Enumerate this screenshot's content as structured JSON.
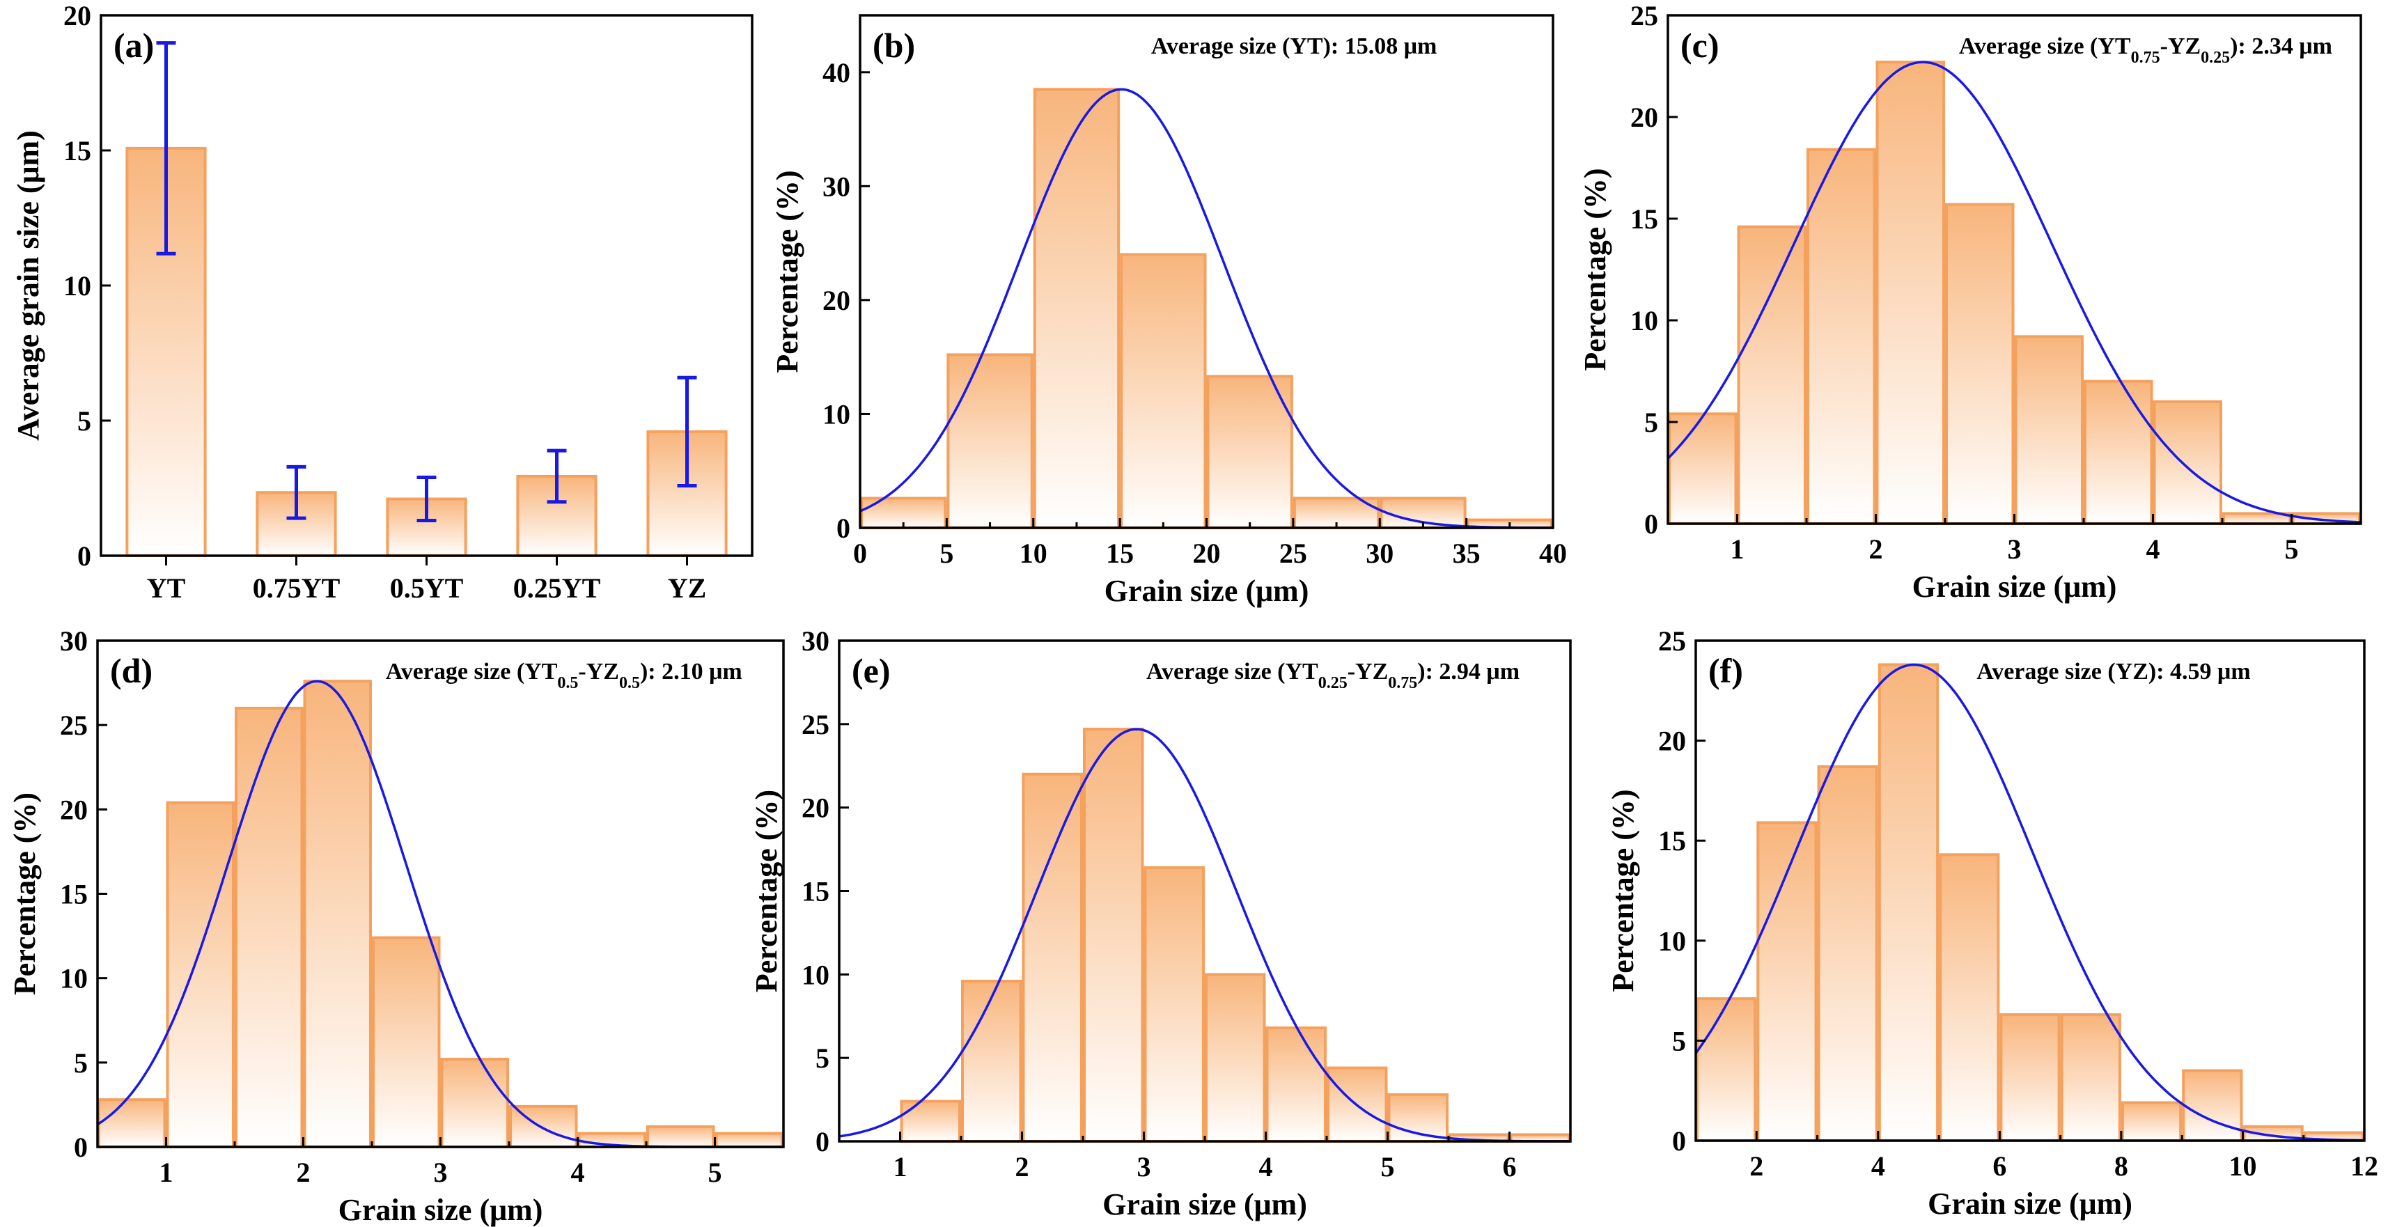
{
  "colors": {
    "bar_edge": "#F5A15E",
    "bar_fill_top": "#F8B57C",
    "bar_fill_bottom": "#FFFFFF",
    "fit_curve": "#1919E6",
    "error_bar": "#1919E6"
  },
  "chart_data": [
    {
      "id": "a",
      "type": "bar",
      "panel_label": "(a)",
      "title": "",
      "ylabel": "Average grain size (μm)",
      "xlabel": "",
      "ylim": [
        0,
        20
      ],
      "yticks": [
        0,
        5,
        10,
        15,
        20
      ],
      "categories": [
        "YT",
        "0.75YT",
        "0.5YT",
        "0.25YT",
        "YZ"
      ],
      "values": [
        15.08,
        2.34,
        2.1,
        2.94,
        4.59
      ],
      "errors": [
        3.9,
        0.95,
        0.8,
        0.95,
        2.0
      ],
      "annotation": ""
    },
    {
      "id": "b",
      "type": "histogram",
      "panel_label": "(b)",
      "annotation": "Average size (YT): 15.08 μm",
      "xlabel": "Grain size (μm)",
      "ylabel": "Percentage (%)",
      "xlim": [
        0,
        40
      ],
      "ylim": [
        0,
        45
      ],
      "xticks": [
        0,
        5,
        10,
        15,
        20,
        25,
        30,
        35,
        40
      ],
      "yticks": [
        0,
        10,
        20,
        30,
        40
      ],
      "bin_edges": [
        0,
        5,
        10,
        15,
        20,
        25,
        30,
        35,
        40
      ],
      "values": [
        2.6,
        15.2,
        38.5,
        24.0,
        13.3,
        2.6,
        2.6,
        0.7
      ],
      "fit": {
        "mean": 15.08,
        "sd": 5.9,
        "peak": 38.5
      }
    },
    {
      "id": "c",
      "type": "histogram",
      "panel_label": "(c)",
      "annotation": "Average size (YT0.75-YZ0.25): 2.34 μm",
      "xlabel": "Grain size (μm)",
      "ylabel": "Percentage (%)",
      "xlim": [
        0.5,
        5.5
      ],
      "ylim": [
        0,
        25
      ],
      "xticks": [
        1,
        2,
        3,
        4,
        5
      ],
      "yticks": [
        0,
        5,
        10,
        15,
        20,
        25
      ],
      "bin_edges": [
        0.5,
        1,
        1.5,
        2,
        2.5,
        3,
        3.5,
        4,
        4.5,
        5,
        5.5
      ],
      "values": [
        5.4,
        14.6,
        18.4,
        22.7,
        15.7,
        9.2,
        7.0,
        6.0,
        0.5,
        0.5
      ],
      "fit": {
        "mean": 2.34,
        "sd": 0.93,
        "peak": 22.7
      }
    },
    {
      "id": "d",
      "type": "histogram",
      "panel_label": "(d)",
      "annotation": "Average size (YT0.5-YZ0.5): 2.10 μm",
      "xlabel": "Grain size (μm)",
      "ylabel": "Percentage (%)",
      "xlim": [
        0.5,
        5.5
      ],
      "ylim": [
        0,
        30
      ],
      "xticks": [
        1,
        2,
        3,
        4,
        5
      ],
      "yticks": [
        0,
        5,
        10,
        15,
        20,
        25,
        30
      ],
      "bin_edges": [
        0.5,
        1,
        1.5,
        2,
        2.5,
        3,
        3.5,
        4,
        4.5,
        5,
        5.5
      ],
      "values": [
        2.8,
        20.4,
        26.0,
        27.6,
        12.4,
        5.2,
        2.4,
        0.8,
        1.2,
        0.8
      ],
      "fit": {
        "mean": 2.1,
        "sd": 0.65,
        "peak": 27.6
      }
    },
    {
      "id": "e",
      "type": "histogram",
      "panel_label": "(e)",
      "annotation": "Average size (YT0.25-YZ0.75): 2.94 μm",
      "xlabel": "Grain size (μm)",
      "ylabel": "Percentage (%)",
      "xlim": [
        0.5,
        6.5
      ],
      "ylim": [
        0,
        30
      ],
      "xticks": [
        1,
        2,
        3,
        4,
        5,
        6
      ],
      "yticks": [
        0,
        5,
        10,
        15,
        20,
        25,
        30
      ],
      "bin_edges": [
        0.5,
        1,
        1.5,
        2,
        2.5,
        3,
        3.5,
        4,
        4.5,
        5,
        5.5,
        6,
        6.5
      ],
      "values": [
        0,
        2.4,
        9.6,
        22.0,
        24.7,
        16.4,
        10.0,
        6.8,
        4.4,
        2.8,
        0.4,
        0.4
      ],
      "fit": {
        "mean": 2.94,
        "sd": 0.82,
        "peak": 24.7
      }
    },
    {
      "id": "f",
      "type": "histogram",
      "panel_label": "(f)",
      "annotation": "Average size (YZ): 4.59 μm",
      "xlabel": "Grain size (μm)",
      "ylabel": "Percentage (%)",
      "xlim": [
        1,
        12
      ],
      "ylim": [
        0,
        25
      ],
      "xticks": [
        2,
        4,
        6,
        8,
        10,
        12
      ],
      "yticks": [
        0,
        5,
        10,
        15,
        20,
        25
      ],
      "bin_edges": [
        1,
        2,
        3,
        4,
        5,
        6,
        7,
        8,
        9,
        10,
        11,
        12
      ],
      "values": [
        7.1,
        15.9,
        18.7,
        23.8,
        14.3,
        6.3,
        6.3,
        1.9,
        3.5,
        0.7,
        0.4
      ],
      "fit": {
        "mean": 4.59,
        "sd": 1.95,
        "peak": 23.8
      }
    }
  ]
}
